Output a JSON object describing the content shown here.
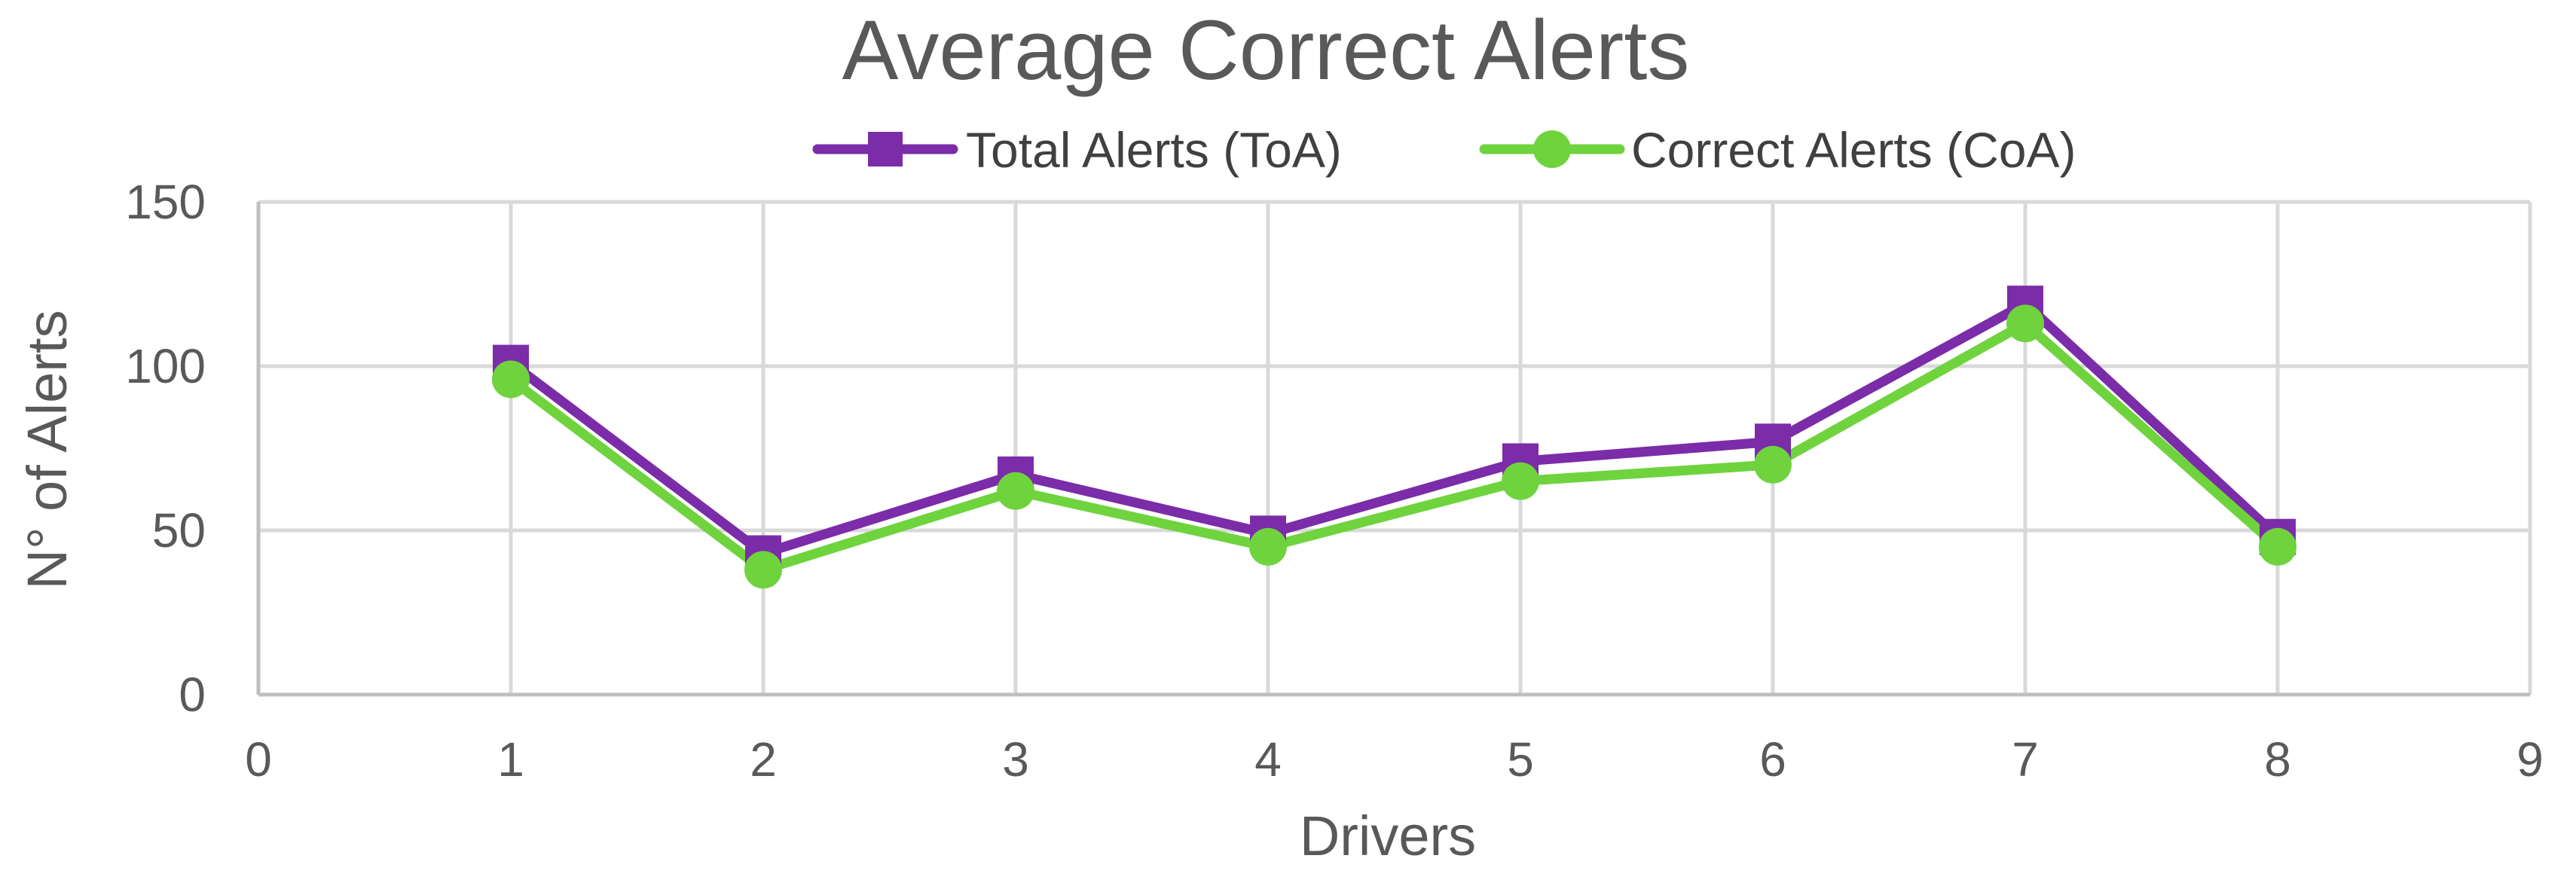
{
  "chart_data": {
    "type": "line",
    "title": "Average Correct Alerts",
    "xlabel": "Drivers",
    "ylabel": "N° of Alerts",
    "xlim": [
      0,
      9
    ],
    "ylim": [
      0,
      150
    ],
    "x_ticks": [
      "0",
      "1",
      "2",
      "3",
      "4",
      "5",
      "6",
      "7",
      "8",
      "9"
    ],
    "y_ticks": [
      "0",
      "50",
      "100",
      "150"
    ],
    "grid": true,
    "legend_position": "top",
    "series": [
      {
        "name": "Total Alerts (ToA)",
        "color": "#7B2CA8",
        "marker": "square",
        "x": [
          1,
          2,
          3,
          4,
          5,
          6,
          7,
          8
        ],
        "values": [
          101,
          43,
          67,
          49,
          71,
          77,
          119,
          48
        ]
      },
      {
        "name": "Correct Alerts (CoA)",
        "color": "#6FD33E",
        "marker": "circle",
        "x": [
          1,
          2,
          3,
          4,
          5,
          6,
          7,
          8
        ],
        "values": [
          96,
          38,
          62,
          45,
          65,
          70,
          113,
          45
        ]
      }
    ]
  }
}
